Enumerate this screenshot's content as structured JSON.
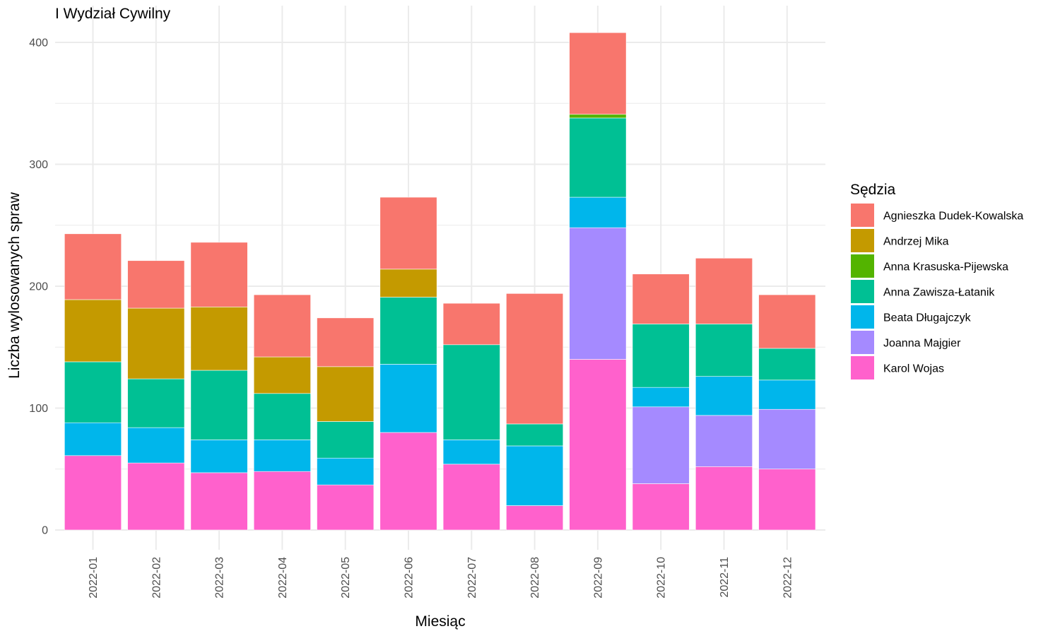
{
  "chart_data": {
    "type": "bar",
    "stacked": true,
    "title": "I Wydział Cywilny",
    "xlabel": "Miesiąc",
    "ylabel": "Liczba wylosowanych spraw",
    "ylim": [
      0,
      410
    ],
    "yticks": [
      0,
      100,
      200,
      300,
      400
    ],
    "grid": true,
    "legend_position": "right",
    "legend_title": "Sędzia",
    "categories": [
      "2022-01",
      "2022-02",
      "2022-03",
      "2022-04",
      "2022-05",
      "2022-06",
      "2022-07",
      "2022-08",
      "2022-09",
      "2022-10",
      "2022-11",
      "2022-12"
    ],
    "series": [
      {
        "name": "Karol Wojas",
        "color": "#FF61CC",
        "values": [
          61,
          55,
          47,
          48,
          37,
          80,
          54,
          20,
          140,
          38,
          52,
          50
        ]
      },
      {
        "name": "Joanna Majgier",
        "color": "#A58AFF",
        "values": [
          0,
          0,
          0,
          0,
          0,
          0,
          0,
          0,
          108,
          63,
          42,
          49
        ]
      },
      {
        "name": "Beata Długajczyk",
        "color": "#00B6EB",
        "values": [
          27,
          29,
          27,
          26,
          22,
          56,
          20,
          49,
          25,
          16,
          32,
          24
        ]
      },
      {
        "name": "Anna Zawisza-Łatanik",
        "color": "#00C094",
        "values": [
          50,
          40,
          57,
          38,
          30,
          55,
          78,
          18,
          65,
          52,
          43,
          26
        ]
      },
      {
        "name": "Anna Krasuska-Pijewska",
        "color": "#53B400",
        "values": [
          0,
          0,
          0,
          0,
          0,
          0,
          0,
          0,
          3,
          0,
          0,
          0
        ]
      },
      {
        "name": "Andrzej Mika",
        "color": "#C49A00",
        "values": [
          51,
          58,
          52,
          30,
          45,
          23,
          0,
          0,
          0,
          0,
          0,
          0
        ]
      },
      {
        "name": "Agnieszka Dudek-Kowalska",
        "color": "#F8766D",
        "values": [
          54,
          39,
          53,
          51,
          40,
          59,
          34,
          107,
          67,
          41,
          54,
          44
        ]
      }
    ],
    "legend_order": [
      "Agnieszka Dudek-Kowalska",
      "Andrzej Mika",
      "Anna Krasuska-Pijewska",
      "Anna Zawisza-Łatanik",
      "Beata Długajczyk",
      "Joanna Majgier",
      "Karol Wojas"
    ]
  }
}
